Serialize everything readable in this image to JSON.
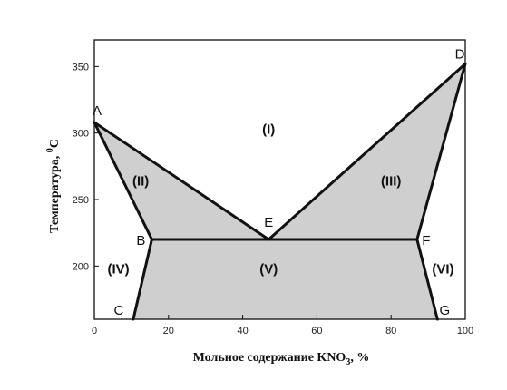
{
  "chart_data": {
    "type": "area",
    "xlabel_main": "Мольное содержание KNO",
    "xlabel_sub": "3",
    "xlabel_tail": ", %",
    "ylabel_main": "Температура, ",
    "ylabel_sup": "0",
    "ylabel_tail": "C",
    "xlim": [
      0,
      100
    ],
    "ylim": [
      160,
      370
    ],
    "xticks": [
      0,
      20,
      40,
      60,
      80,
      100
    ],
    "yticks": [
      200,
      250,
      300,
      350
    ],
    "fill_color": "#cfcfcf",
    "line_color": "#111111",
    "points": [
      {
        "name": "A",
        "x": 0,
        "y": 308
      },
      {
        "name": "B",
        "x": 15.5,
        "y": 220
      },
      {
        "name": "C",
        "x": 10.5,
        "y": 160
      },
      {
        "name": "D",
        "x": 100,
        "y": 352
      },
      {
        "name": "E",
        "x": 47,
        "y": 220
      },
      {
        "name": "F",
        "x": 87,
        "y": 220
      },
      {
        "name": "G",
        "x": 92.5,
        "y": 160
      }
    ],
    "lines": [
      [
        "A",
        "E"
      ],
      [
        "E",
        "D"
      ],
      [
        "A",
        "B"
      ],
      [
        "B",
        "C"
      ],
      [
        "D",
        "F"
      ],
      [
        "F",
        "G"
      ],
      [
        "B",
        "F"
      ]
    ],
    "shaded_regions": [
      [
        "A",
        "E",
        "B"
      ],
      [
        "E",
        "D",
        "F"
      ],
      [
        "B",
        "F",
        "G",
        "C"
      ]
    ],
    "region_labels": [
      {
        "text": "(I)",
        "x": 47,
        "y": 303
      },
      {
        "text": "(II)",
        "x": 12.5,
        "y": 264
      },
      {
        "text": "(III)",
        "x": 80,
        "y": 264
      },
      {
        "text": "(IV)",
        "x": 6.5,
        "y": 198
      },
      {
        "text": "(V)",
        "x": 47,
        "y": 198
      },
      {
        "text": "(VI)",
        "x": 94,
        "y": 198
      }
    ]
  }
}
